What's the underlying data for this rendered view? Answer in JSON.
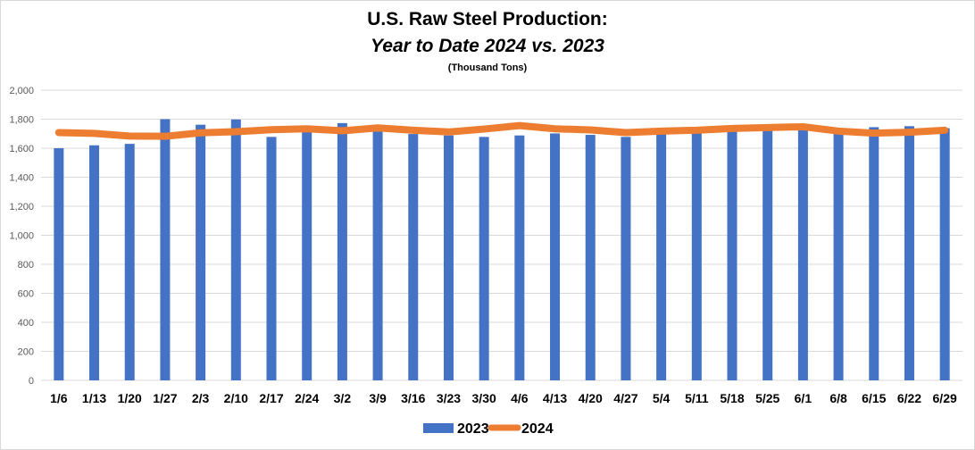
{
  "chart_data": {
    "type": "bar",
    "title": "U.S. Raw Steel Production:",
    "subtitle": "Year to Date 2024 vs. 2023",
    "units_note": "(Thousand Tons)",
    "xlabel": "",
    "ylabel": "",
    "ylim": [
      0,
      2000
    ],
    "yticks": [
      "0",
      "200",
      "400",
      "600",
      "800",
      "1,000",
      "1,200",
      "1,400",
      "1,600",
      "1,800",
      "2,000"
    ],
    "ytick_values": [
      0,
      200,
      400,
      600,
      800,
      1000,
      1200,
      1400,
      1600,
      1800,
      2000
    ],
    "grid": true,
    "legend_position": "bottom",
    "categories": [
      "1/6",
      "1/13",
      "1/20",
      "1/27",
      "2/3",
      "2/10",
      "2/17",
      "2/24",
      "3/2",
      "3/9",
      "3/16",
      "3/23",
      "3/30",
      "4/6",
      "4/13",
      "4/20",
      "4/27",
      "5/4",
      "5/11",
      "5/18",
      "5/25",
      "6/1",
      "6/8",
      "6/15",
      "6/22",
      "6/29"
    ],
    "series": [
      {
        "name": "2023",
        "type": "bar",
        "color": "#4472c4",
        "values": [
          1600,
          1620,
          1630,
          1800,
          1762,
          1798,
          1678,
          1715,
          1773,
          1715,
          1698,
          1688,
          1678,
          1688,
          1702,
          1692,
          1678,
          1696,
          1708,
          1718,
          1728,
          1735,
          1700,
          1745,
          1752,
          1738
        ]
      },
      {
        "name": "2024",
        "type": "line",
        "color": "#ed7d31",
        "values": [
          1708,
          1702,
          1684,
          1682,
          1706,
          1714,
          1728,
          1734,
          1720,
          1740,
          1724,
          1712,
          1732,
          1756,
          1734,
          1726,
          1708,
          1718,
          1724,
          1736,
          1742,
          1748,
          1718,
          1704,
          1710,
          1724
        ]
      }
    ]
  }
}
